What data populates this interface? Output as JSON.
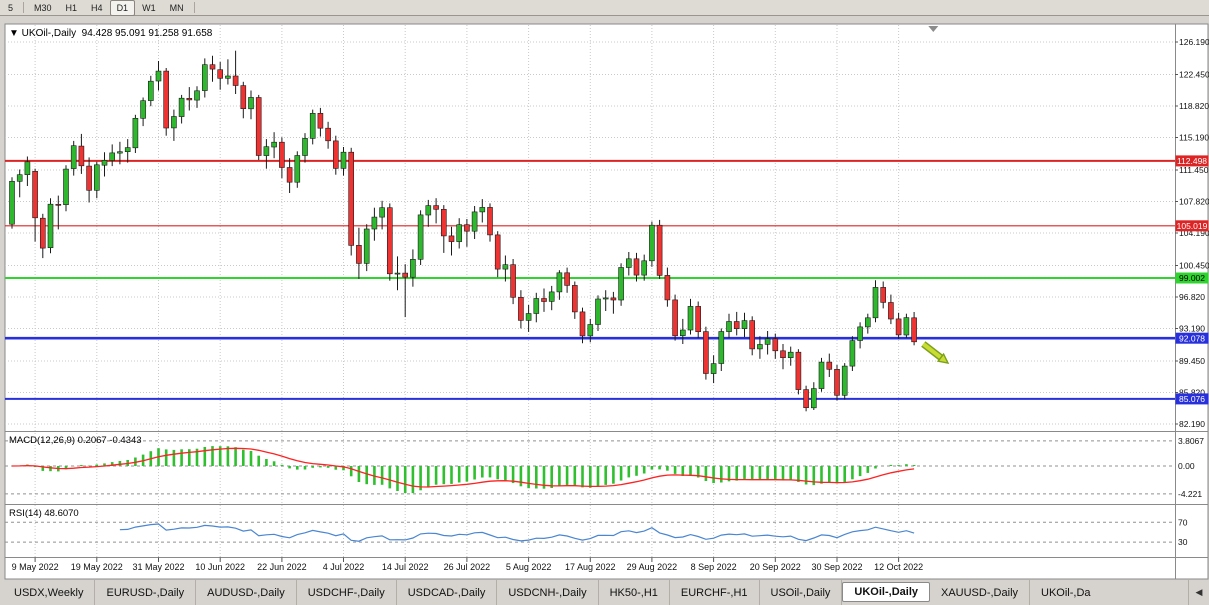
{
  "toolbar": {
    "timeframes": [
      {
        "label": "5",
        "active": false
      },
      {
        "label": "M30",
        "active": false
      },
      {
        "label": "H1",
        "active": false
      },
      {
        "label": "H4",
        "active": false
      },
      {
        "label": "D1",
        "active": true
      },
      {
        "label": "W1",
        "active": false
      },
      {
        "label": "MN",
        "active": false
      }
    ]
  },
  "chart": {
    "dropdown_icon": "▼",
    "title": "UKOil-,Daily",
    "ohlc": "94.428 95.091 91.258 91.658",
    "price_axis": [
      "126.190",
      "122.450",
      "118.820",
      "115.190",
      "111.450",
      "107.820",
      "104.190",
      "100.450",
      "96.820",
      "93.190",
      "89.450",
      "85.820",
      "82.190"
    ],
    "hlines": [
      {
        "price": 112.498,
        "label": "112.498",
        "color": "#dd2424",
        "width": 2,
        "text": "#ffffff"
      },
      {
        "price": 105.019,
        "label": "105.019",
        "color": "#dd2424",
        "width": 1.2,
        "text": "#ffffff"
      },
      {
        "price": 99.002,
        "label": "99.002",
        "color": "#2fd42f",
        "width": 2,
        "text": "#000000"
      },
      {
        "price": 92.078,
        "label": "92.078",
        "color": "#2830dc",
        "width": 2.6,
        "text": "#ffffff"
      },
      {
        "price": 85.076,
        "label": "85.076",
        "color": "#2830dc",
        "width": 2,
        "text": "#ffffff"
      }
    ],
    "macd": {
      "label": "MACD(12,26,9)",
      "values": "0.2067 -0.4343",
      "axis": [
        "3.8067",
        "0.00",
        "-4.221"
      ],
      "axis_values": [
        3.8067,
        0,
        -4.221
      ]
    },
    "rsi": {
      "label": "RSI(14)",
      "value": "48.6070",
      "levels": [
        70,
        30
      ],
      "level_labels": [
        "70",
        "30"
      ]
    },
    "dates": [
      "9 May 2022",
      "19 May 2022",
      "31 May 2022",
      "10 Jun 2022",
      "22 Jun 2022",
      "4 Jul 2022",
      "14 Jul 2022",
      "26 Jul 2022",
      "5 Aug 2022",
      "17 Aug 2022",
      "29 Aug 2022",
      "8 Sep 2022",
      "20 Sep 2022",
      "30 Sep 2022",
      "12 Oct 2022"
    ],
    "colors": {
      "background": "#d6d3ce",
      "chart_bg": "#ffffff",
      "grid": "#c9c9c9",
      "bull": "#2eb82e",
      "bear": "#ee3333",
      "outline": "#1a1a1a",
      "macd_hist": "#2fbf2f",
      "macd_signal": "#ff2222",
      "rsi_line": "#4a86d2",
      "level_dash": "#909090",
      "axis_text": "#111111"
    },
    "annotations": {
      "arrow": {
        "from_index": 118.2,
        "from_price": 91.4,
        "to_index": 121.4,
        "to_price": 89.2,
        "fill": "#c8dc32",
        "outline": "#7ca01e"
      },
      "shift_marker_index": 119.5
    }
  },
  "chart_data": {
    "type": "candlestick",
    "symbol": "UKOil-",
    "timeframe": "Daily",
    "current": {
      "open": 94.428,
      "high": 95.091,
      "low": 91.258,
      "close": 91.658
    },
    "first_tick_index": 3,
    "tick_step": 8,
    "y_axis_range": [
      82.19,
      126.19
    ],
    "candles": [
      [
        105.2,
        110.6,
        104.7,
        110.14
      ],
      [
        110.14,
        111.5,
        108.3,
        110.9
      ],
      [
        110.9,
        113.0,
        109.6,
        112.39
      ],
      [
        111.3,
        111.6,
        103.2,
        105.94
      ],
      [
        105.9,
        106.4,
        101.3,
        102.46
      ],
      [
        102.5,
        108.2,
        101.86,
        107.51
      ],
      [
        107.5,
        108.5,
        104.6,
        107.45
      ],
      [
        107.45,
        112.0,
        106.7,
        111.55
      ],
      [
        111.6,
        114.8,
        110.8,
        114.24
      ],
      [
        114.2,
        115.6,
        111.0,
        111.93
      ],
      [
        111.9,
        112.9,
        107.7,
        109.11
      ],
      [
        109.1,
        112.4,
        108.2,
        112.04
      ],
      [
        112.0,
        113.5,
        110.7,
        112.55
      ],
      [
        112.55,
        114.4,
        111.9,
        113.42
      ],
      [
        113.4,
        114.7,
        112.1,
        113.56
      ],
      [
        113.56,
        115.0,
        112.3,
        114.03
      ],
      [
        114.0,
        117.8,
        113.4,
        117.4
      ],
      [
        117.4,
        119.8,
        116.5,
        119.43
      ],
      [
        119.43,
        122.3,
        118.8,
        121.67
      ],
      [
        121.7,
        124.0,
        120.6,
        122.84
      ],
      [
        122.84,
        123.2,
        115.4,
        116.29
      ],
      [
        116.3,
        118.4,
        114.8,
        117.61
      ],
      [
        117.6,
        120.1,
        116.8,
        119.72
      ],
      [
        119.7,
        121.0,
        118.3,
        119.51
      ],
      [
        119.5,
        121.1,
        118.6,
        120.57
      ],
      [
        120.6,
        124.3,
        119.8,
        123.58
      ],
      [
        123.58,
        124.6,
        121.6,
        123.07
      ],
      [
        123.0,
        123.9,
        120.7,
        122.01
      ],
      [
        122.0,
        124.2,
        121.3,
        122.27
      ],
      [
        122.27,
        125.19,
        120.2,
        121.17
      ],
      [
        121.17,
        121.6,
        117.4,
        118.51
      ],
      [
        118.5,
        120.6,
        117.3,
        119.81
      ],
      [
        119.8,
        120.1,
        112.6,
        113.12
      ],
      [
        113.1,
        115.0,
        111.6,
        114.13
      ],
      [
        114.1,
        115.8,
        112.8,
        114.65
      ],
      [
        114.65,
        115.2,
        110.5,
        111.74
      ],
      [
        111.74,
        112.8,
        108.8,
        110.05
      ],
      [
        110.05,
        113.6,
        109.4,
        113.12
      ],
      [
        113.12,
        115.7,
        112.3,
        115.09
      ],
      [
        115.09,
        118.4,
        114.4,
        117.98
      ],
      [
        117.98,
        118.6,
        115.3,
        116.26
      ],
      [
        116.26,
        117.0,
        113.9,
        114.81
      ],
      [
        114.8,
        115.4,
        110.9,
        111.63
      ],
      [
        111.63,
        114.1,
        110.8,
        113.5
      ],
      [
        113.5,
        114.0,
        101.6,
        102.77
      ],
      [
        102.77,
        104.8,
        98.9,
        100.69
      ],
      [
        100.69,
        105.2,
        99.8,
        104.65
      ],
      [
        104.65,
        107.1,
        103.3,
        106.02
      ],
      [
        106.02,
        107.9,
        104.6,
        107.1
      ],
      [
        107.1,
        107.6,
        98.7,
        99.49
      ],
      [
        99.49,
        101.5,
        97.6,
        99.57
      ],
      [
        99.57,
        100.6,
        94.5,
        99.1
      ],
      [
        99.1,
        102.3,
        98.0,
        101.16
      ],
      [
        101.16,
        106.8,
        100.5,
        106.27
      ],
      [
        106.27,
        108.0,
        104.9,
        107.35
      ],
      [
        107.35,
        108.2,
        105.3,
        106.92
      ],
      [
        106.92,
        107.4,
        101.9,
        103.86
      ],
      [
        103.86,
        104.9,
        101.6,
        103.2
      ],
      [
        103.2,
        105.9,
        102.4,
        105.15
      ],
      [
        105.15,
        105.8,
        102.6,
        104.4
      ],
      [
        104.4,
        107.3,
        103.5,
        106.62
      ],
      [
        106.62,
        108.1,
        105.4,
        107.14
      ],
      [
        107.14,
        107.6,
        103.2,
        103.97
      ],
      [
        103.97,
        104.4,
        99.1,
        100.03
      ],
      [
        100.03,
        101.6,
        98.6,
        100.54
      ],
      [
        100.54,
        101.2,
        96.0,
        96.78
      ],
      [
        96.78,
        97.6,
        93.2,
        94.12
      ],
      [
        94.12,
        95.9,
        92.8,
        94.92
      ],
      [
        94.92,
        97.3,
        93.9,
        96.65
      ],
      [
        96.65,
        97.8,
        95.1,
        96.31
      ],
      [
        96.31,
        98.1,
        95.3,
        97.4
      ],
      [
        97.4,
        99.9,
        96.5,
        99.6
      ],
      [
        99.6,
        100.2,
        97.3,
        98.15
      ],
      [
        98.15,
        98.6,
        94.3,
        95.1
      ],
      [
        95.1,
        95.6,
        91.5,
        92.34
      ],
      [
        92.34,
        94.3,
        91.6,
        93.65
      ],
      [
        93.65,
        97.0,
        92.9,
        96.59
      ],
      [
        96.59,
        97.6,
        95.2,
        96.72
      ],
      [
        96.72,
        97.4,
        94.9,
        96.48
      ],
      [
        96.48,
        100.7,
        95.8,
        100.22
      ],
      [
        100.22,
        102.0,
        99.3,
        101.22
      ],
      [
        101.22,
        101.9,
        98.6,
        99.34
      ],
      [
        99.34,
        101.7,
        98.7,
        100.99
      ],
      [
        100.99,
        105.5,
        100.3,
        105.09
      ],
      [
        105.09,
        105.7,
        98.9,
        99.31
      ],
      [
        99.31,
        100.2,
        95.7,
        96.49
      ],
      [
        96.49,
        97.1,
        91.8,
        92.36
      ],
      [
        92.36,
        94.3,
        91.4,
        93.02
      ],
      [
        93.02,
        96.6,
        92.5,
        95.74
      ],
      [
        95.74,
        96.3,
        92.1,
        92.83
      ],
      [
        92.83,
        93.4,
        87.3,
        88.0
      ],
      [
        88.0,
        90.1,
        86.9,
        89.15
      ],
      [
        89.15,
        93.2,
        88.3,
        92.84
      ],
      [
        92.84,
        94.9,
        92.1,
        94.0
      ],
      [
        94.0,
        95.1,
        92.4,
        93.17
      ],
      [
        93.17,
        95.0,
        92.2,
        94.1
      ],
      [
        94.1,
        94.6,
        90.1,
        90.84
      ],
      [
        90.84,
        92.3,
        89.7,
        91.35
      ],
      [
        91.35,
        92.9,
        90.2,
        92.0
      ],
      [
        92.0,
        92.6,
        89.7,
        90.62
      ],
      [
        90.62,
        91.4,
        88.5,
        89.83
      ],
      [
        89.83,
        91.1,
        88.9,
        90.46
      ],
      [
        90.46,
        90.8,
        85.6,
        86.15
      ],
      [
        86.15,
        86.6,
        83.65,
        84.06
      ],
      [
        84.06,
        87.0,
        83.8,
        86.27
      ],
      [
        86.27,
        89.8,
        85.9,
        89.32
      ],
      [
        89.32,
        90.3,
        87.6,
        88.49
      ],
      [
        88.49,
        89.0,
        84.9,
        85.5
      ],
      [
        85.5,
        89.2,
        85.0,
        88.86
      ],
      [
        88.86,
        92.3,
        88.3,
        91.8
      ],
      [
        91.8,
        93.9,
        90.9,
        93.37
      ],
      [
        93.37,
        94.9,
        92.6,
        94.42
      ],
      [
        94.42,
        98.75,
        93.9,
        97.92
      ],
      [
        97.92,
        98.6,
        95.5,
        96.19
      ],
      [
        96.19,
        97.1,
        93.7,
        94.29
      ],
      [
        94.29,
        95.0,
        92.0,
        92.45
      ],
      [
        92.45,
        94.9,
        92.1,
        94.45
      ],
      [
        94.428,
        95.091,
        91.258,
        91.658
      ]
    ],
    "indicators": [
      {
        "name": "MACD",
        "params": [
          12,
          26,
          9
        ],
        "current_main": 0.2067,
        "current_signal": -0.4343
      },
      {
        "name": "RSI",
        "params": [
          14
        ],
        "current": 48.607
      }
    ]
  },
  "tabs": {
    "items": [
      {
        "label": "USDX,Weekly"
      },
      {
        "label": "EURUSD-,Daily"
      },
      {
        "label": "AUDUSD-,Daily"
      },
      {
        "label": "USDCHF-,Daily"
      },
      {
        "label": "USDCAD-,Daily"
      },
      {
        "label": "USDCNH-,Daily"
      },
      {
        "label": "HK50-,H1"
      },
      {
        "label": "EURCHF-,H1"
      },
      {
        "label": "USOil-,Daily"
      },
      {
        "label": "UKOil-,Daily",
        "active": true
      },
      {
        "label": "XAUUSD-,Daily"
      },
      {
        "label": "UKOil-,Da",
        "partial": true
      }
    ],
    "scroll_icon": "◀"
  }
}
